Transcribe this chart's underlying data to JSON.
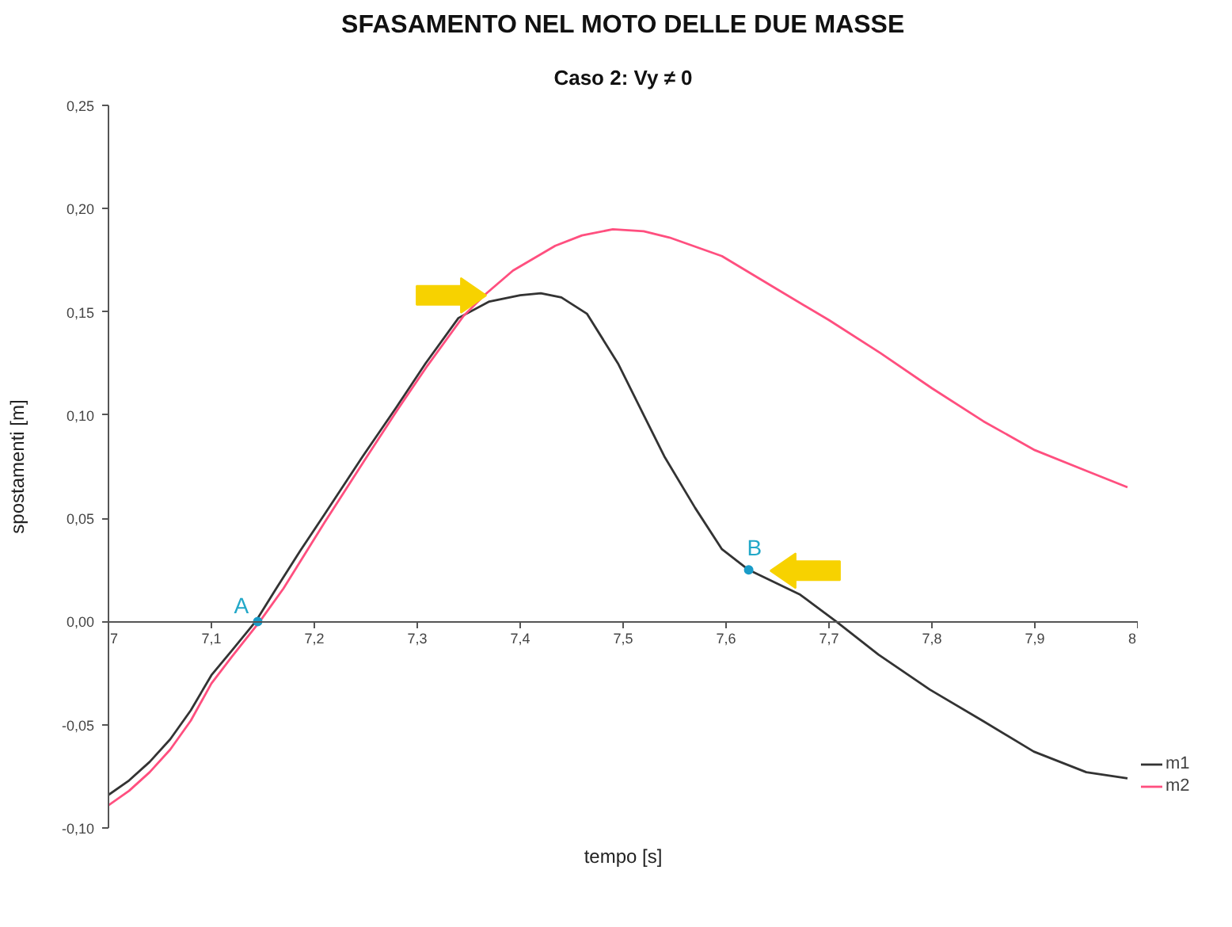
{
  "chart_data": {
    "type": "line",
    "title": "SFASAMENTO NEL MOTO DELLE DUE MASSE",
    "subtitle": "Caso 2: Vy ≠ 0",
    "xlabel": "tempo [s]",
    "ylabel": "spostamenti [m]",
    "xlim": [
      7,
      8
    ],
    "xticks": [
      7,
      {
        "value": 7.1,
        "label": "7,1"
      },
      {
        "value": 7.2,
        "label": "7,2"
      },
      {
        "value": 7.3,
        "label": "7,3"
      },
      {
        "value": 7.4,
        "label": "7,4"
      },
      {
        "value": 7.5,
        "label": "7,5"
      },
      {
        "value": 7.6,
        "label": "7,6"
      },
      {
        "value": 7.7,
        "label": "7,7"
      },
      {
        "value": 7.8,
        "label": "7,8"
      },
      {
        "value": 7.9,
        "label": "7,9"
      },
      8
    ],
    "ylim": [
      -0.1,
      0.25
    ],
    "yticks": [
      {
        "value": -0.1,
        "label": "-0,10"
      },
      {
        "value": -0.05,
        "label": "-0,05"
      },
      {
        "value": 0,
        "label": "0,00"
      },
      {
        "value": 0.05,
        "label": "0,05"
      },
      {
        "value": 0.1,
        "label": "0,10"
      },
      {
        "value": 0.15,
        "label": "0,15"
      },
      {
        "value": 0.2,
        "label": "0,20"
      },
      {
        "value": 0.25,
        "label": "0,25"
      }
    ],
    "series": [
      {
        "name": "m1",
        "color": "#333333",
        "x": [
          7.0,
          7.02,
          7.04,
          7.06,
          7.08,
          7.1,
          7.12,
          7.143,
          7.163,
          7.186,
          7.21,
          7.247,
          7.28,
          7.308,
          7.34,
          7.37,
          7.4,
          7.42,
          7.44,
          7.465,
          7.495,
          7.52,
          7.54,
          7.57,
          7.596,
          7.622,
          7.672,
          7.707,
          7.748,
          7.798,
          7.849,
          7.899,
          7.95,
          7.99
        ],
        "values": [
          -0.084,
          -0.077,
          -0.068,
          -0.057,
          -0.043,
          -0.026,
          -0.014,
          0.0,
          0.016,
          0.034,
          0.052,
          0.08,
          0.104,
          0.125,
          0.147,
          0.155,
          0.158,
          0.159,
          0.157,
          0.149,
          0.125,
          0.1,
          0.08,
          0.055,
          0.035,
          0.025,
          0.013,
          0.0,
          -0.016,
          -0.033,
          -0.048,
          -0.063,
          -0.073,
          -0.076
        ]
      },
      {
        "name": "m2",
        "color": "#ff4f7f",
        "x": [
          7.0,
          7.02,
          7.04,
          7.06,
          7.08,
          7.1,
          7.12,
          7.147,
          7.17,
          7.19,
          7.21,
          7.25,
          7.28,
          7.31,
          7.345,
          7.365,
          7.393,
          7.434,
          7.46,
          7.49,
          7.52,
          7.545,
          7.596,
          7.646,
          7.7,
          7.75,
          7.8,
          7.85,
          7.9,
          7.95,
          7.99
        ],
        "values": [
          -0.089,
          -0.082,
          -0.073,
          -0.062,
          -0.048,
          -0.03,
          -0.017,
          0.0,
          0.016,
          0.032,
          0.048,
          0.079,
          0.102,
          0.124,
          0.148,
          0.158,
          0.17,
          0.182,
          0.187,
          0.19,
          0.189,
          0.186,
          0.177,
          0.162,
          0.146,
          0.13,
          0.113,
          0.097,
          0.083,
          0.073,
          0.065
        ]
      },
      {
        "type": "scatter",
        "color": "#1a9cc8",
        "marker": "circle",
        "x": [
          7.145,
          7.622
        ],
        "values": [
          0,
          0.025
        ]
      }
    ],
    "annotations": [
      {
        "text": "A",
        "x": 7.145,
        "y": 0
      },
      {
        "text": "B",
        "x": 7.622,
        "y": 0.025
      }
    ],
    "legend": "bottom right",
    "grid": false
  }
}
